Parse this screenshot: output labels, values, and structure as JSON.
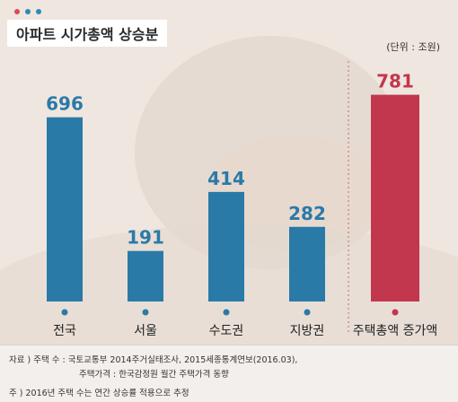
{
  "header": {
    "title": "아파트 시가총액 상승분",
    "unit": "(단위 : 조원)"
  },
  "colors": {
    "dot_1": "#d94a5a",
    "dot_2": "#2a8ab8",
    "dot_3": "#2a8ab8",
    "bar_regular": "#2a7aa8",
    "bar_highlight": "#c2364e",
    "value_regular": "#2a7aa8",
    "value_highlight": "#c2364e"
  },
  "chart_data": {
    "type": "bar",
    "categories": [
      "전국",
      "서울",
      "수도권",
      "지방권",
      "주택총액 증가액"
    ],
    "values": [
      696,
      191,
      414,
      282,
      781
    ],
    "ylim": [
      0,
      800
    ],
    "grid": false,
    "legend": "none",
    "highlight_category": "주택총액 증가액"
  },
  "footer": {
    "line1": "자료 ) 주택 수 : 국토교통부 2014주거실태조사, 2015세종통계연보(2016.03),",
    "line2": "주택가격 : 한국감정원 월간 주택가격 동향",
    "line3": "주 ) 2016년 주택 수는 연간 상승률 적용으로 추정"
  }
}
